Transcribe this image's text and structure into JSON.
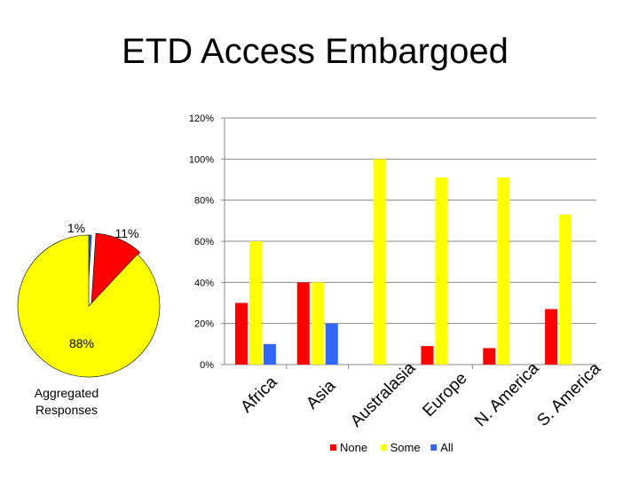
{
  "slide": {
    "title": "ETD Access Embargoed"
  },
  "colors": {
    "none": "#ff0000",
    "some": "#ffff00",
    "all": "#3366ff",
    "edge": "#000000",
    "grid": "#888888"
  },
  "chart_data": [
    {
      "type": "pie",
      "title": "",
      "caption": "Aggregated Responses",
      "slices": [
        {
          "name": "All",
          "value": 1,
          "label": "1%",
          "color": "#3366ff"
        },
        {
          "name": "None",
          "value": 11,
          "label": "11%",
          "color": "#ff0000"
        },
        {
          "name": "Some",
          "value": 88,
          "label": "88%",
          "color": "#ffff00"
        }
      ]
    },
    {
      "type": "bar",
      "title": "",
      "xlabel": "",
      "ylabel": "",
      "ylim": [
        0,
        120
      ],
      "yticks": [
        0,
        20,
        40,
        60,
        80,
        100,
        120
      ],
      "ytick_labels": [
        "0%",
        "20%",
        "40%",
        "60%",
        "80%",
        "100%",
        "120%"
      ],
      "grid": true,
      "legend": "bottom",
      "categories": [
        "Africa",
        "Asia",
        "Australasia",
        "Europe",
        "N. America",
        "S. America"
      ],
      "series": [
        {
          "name": "None",
          "color": "#ff0000",
          "values": [
            30,
            40,
            0,
            9,
            8,
            27
          ]
        },
        {
          "name": "Some",
          "color": "#ffff00",
          "values": [
            60,
            40,
            100,
            91,
            91,
            73
          ]
        },
        {
          "name": "All",
          "color": "#3366ff",
          "values": [
            10,
            20,
            0,
            0,
            0,
            0
          ]
        }
      ]
    }
  ]
}
